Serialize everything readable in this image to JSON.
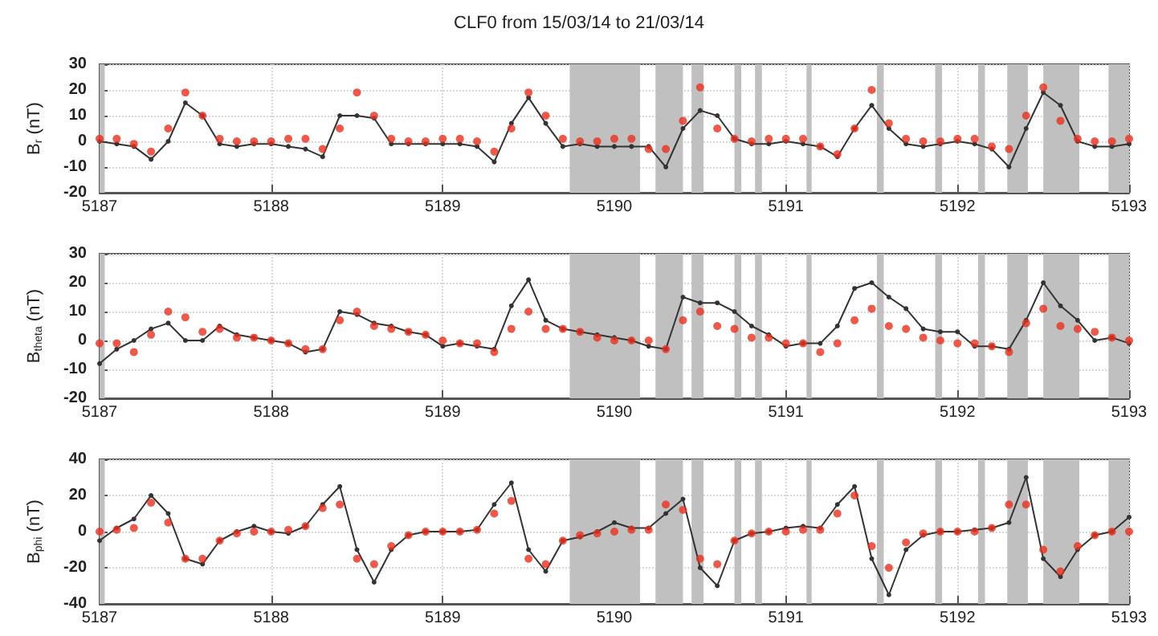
{
  "chart_data": [
    {
      "type": "line",
      "title": "CLF0 from 15/03/14 to 21/03/14",
      "ylabel": "B$_{r}$ (nT)",
      "grid": true,
      "x": [
        5187,
        5187.1,
        5187.2,
        5187.3,
        5187.4,
        5187.5,
        5187.6,
        5187.7,
        5187.8,
        5187.9,
        5188,
        5188.1,
        5188.2,
        5188.3,
        5188.4,
        5188.5,
        5188.6,
        5188.7,
        5188.8,
        5188.9,
        5189,
        5189.1,
        5189.2,
        5189.3,
        5189.4,
        5189.5,
        5189.6,
        5189.7,
        5189.8,
        5189.9,
        5190,
        5190.1,
        5190.2,
        5190.3,
        5190.4,
        5190.5,
        5190.6,
        5190.7,
        5190.8,
        5190.9,
        5191,
        5191.1,
        5191.2,
        5191.3,
        5191.4,
        5191.5,
        5191.6,
        5191.7,
        5191.8,
        5191.9,
        5192,
        5192.1,
        5192.2,
        5192.3,
        5192.4,
        5192.5,
        5192.6,
        5192.7,
        5192.8,
        5192.9,
        5193
      ],
      "xlim": [
        5187,
        5193
      ],
      "xticks": [
        5187,
        5188,
        5189,
        5190,
        5191,
        5192,
        5193
      ],
      "ylim": [
        -20,
        30
      ],
      "yticks": [
        -20,
        -10,
        0,
        10,
        20,
        30
      ],
      "series": [
        {
          "color": "#333333",
          "marker": "circle",
          "values": [
            0,
            -1,
            -2,
            -7,
            0,
            15,
            10,
            -1,
            -2,
            -1,
            -1,
            -2,
            -3,
            -6,
            10,
            10,
            9,
            -1,
            -1,
            -1,
            -1,
            -1,
            -2,
            -8,
            7,
            17,
            7,
            -2,
            -1,
            -2,
            -2,
            -2,
            -2,
            -10,
            5,
            12,
            10,
            1,
            -1,
            -1,
            0,
            -1,
            -2,
            -6,
            5,
            14,
            5,
            -1,
            -2,
            -1,
            0,
            -1,
            -3,
            -10,
            5,
            19,
            14,
            0,
            -2,
            -2,
            -1
          ]
        },
        {
          "type": "scatter",
          "color": "#e8311e",
          "marker": "circle",
          "values": [
            1,
            1,
            -1,
            -4,
            5,
            19,
            10,
            1,
            0,
            0,
            0,
            1,
            1,
            -3,
            5,
            19,
            10,
            1,
            0,
            0,
            1,
            1,
            0,
            -4,
            5,
            19,
            10,
            1,
            0,
            0,
            1,
            1,
            -3,
            -3,
            8,
            21,
            5,
            1,
            0,
            1,
            1,
            1,
            -2,
            -5,
            5,
            20,
            7,
            1,
            0,
            0,
            1,
            1,
            -2,
            -3,
            10,
            21,
            8,
            1,
            0,
            0,
            1
          ]
        }
      ],
      "bands": [
        {
          "axis": "x",
          "from": 5187,
          "to": 5187.03,
          "color": "#c0c0c0"
        },
        {
          "axis": "x",
          "from": 5189.74,
          "to": 5190.15,
          "color": "#c0c0c0"
        },
        {
          "axis": "x",
          "from": 5190.24,
          "to": 5190.4,
          "color": "#c0c0c0"
        },
        {
          "axis": "x",
          "from": 5190.45,
          "to": 5190.52,
          "color": "#c0c0c0"
        },
        {
          "axis": "x",
          "from": 5190.7,
          "to": 5190.74,
          "color": "#c0c0c0"
        },
        {
          "axis": "x",
          "from": 5190.82,
          "to": 5190.86,
          "color": "#c0c0c0"
        },
        {
          "axis": "x",
          "from": 5191.12,
          "to": 5191.15,
          "color": "#c0c0c0"
        },
        {
          "axis": "x",
          "from": 5191.53,
          "to": 5191.57,
          "color": "#c0c0c0"
        },
        {
          "axis": "x",
          "from": 5191.87,
          "to": 5191.91,
          "color": "#c0c0c0"
        },
        {
          "axis": "x",
          "from": 5192.12,
          "to": 5192.16,
          "color": "#c0c0c0"
        },
        {
          "axis": "x",
          "from": 5192.29,
          "to": 5192.41,
          "color": "#c0c0c0"
        },
        {
          "axis": "x",
          "from": 5192.5,
          "to": 5192.71,
          "color": "#c0c0c0"
        },
        {
          "axis": "x",
          "from": 5192.88,
          "to": 5193,
          "color": "#c0c0c0"
        }
      ]
    },
    {
      "type": "line",
      "ylabel": "B$_{theta}$ (nT)",
      "grid": true,
      "x": [
        5187,
        5187.1,
        5187.2,
        5187.3,
        5187.4,
        5187.5,
        5187.6,
        5187.7,
        5187.8,
        5187.9,
        5188,
        5188.1,
        5188.2,
        5188.3,
        5188.4,
        5188.5,
        5188.6,
        5188.7,
        5188.8,
        5188.9,
        5189,
        5189.1,
        5189.2,
        5189.3,
        5189.4,
        5189.5,
        5189.6,
        5189.7,
        5189.8,
        5189.9,
        5190,
        5190.1,
        5190.2,
        5190.3,
        5190.4,
        5190.5,
        5190.6,
        5190.7,
        5190.8,
        5190.9,
        5191,
        5191.1,
        5191.2,
        5191.3,
        5191.4,
        5191.5,
        5191.6,
        5191.7,
        5191.8,
        5191.9,
        5192,
        5192.1,
        5192.2,
        5192.3,
        5192.4,
        5192.5,
        5192.6,
        5192.7,
        5192.8,
        5192.9,
        5193
      ],
      "xlim": [
        5187,
        5193
      ],
      "xticks": [
        5187,
        5188,
        5189,
        5190,
        5191,
        5192,
        5193
      ],
      "ylim": [
        -20,
        30
      ],
      "yticks": [
        -20,
        -10,
        0,
        10,
        20,
        30
      ],
      "series": [
        {
          "color": "#333333",
          "marker": "circle",
          "values": [
            -8,
            -3,
            0,
            4,
            6,
            0,
            0,
            5,
            2,
            1,
            0,
            -1,
            -4,
            -3,
            10,
            9,
            6,
            5,
            3,
            2,
            -2,
            -1,
            -2,
            -3,
            12,
            21,
            7,
            4,
            3,
            2,
            1,
            0,
            -2,
            -3,
            15,
            13,
            13,
            10,
            5,
            2,
            -2,
            -1,
            -1,
            5,
            18,
            20,
            15,
            11,
            4,
            3,
            3,
            -2,
            -2,
            -3,
            7,
            20,
            12,
            7,
            0,
            1,
            -1
          ]
        },
        {
          "type": "scatter",
          "color": "#e8311e",
          "marker": "circle",
          "values": [
            -1,
            -1,
            -4,
            2,
            10,
            8,
            3,
            4,
            1,
            1,
            0,
            -1,
            -3,
            -3,
            7,
            10,
            5,
            4,
            3,
            2,
            0,
            -1,
            -1,
            -4,
            4,
            10,
            4,
            4,
            3,
            1,
            0,
            0,
            0,
            -3,
            7,
            10,
            5,
            4,
            1,
            1,
            -1,
            -1,
            -4,
            -1,
            7,
            11,
            5,
            4,
            1,
            0,
            -1,
            -1,
            -2,
            -4,
            6,
            11,
            5,
            4,
            3,
            1,
            0
          ]
        }
      ],
      "bands": [
        {
          "axis": "x",
          "from": 5187,
          "to": 5187.03,
          "color": "#c0c0c0"
        },
        {
          "axis": "x",
          "from": 5189.74,
          "to": 5190.15,
          "color": "#c0c0c0"
        },
        {
          "axis": "x",
          "from": 5190.24,
          "to": 5190.4,
          "color": "#c0c0c0"
        },
        {
          "axis": "x",
          "from": 5190.45,
          "to": 5190.52,
          "color": "#c0c0c0"
        },
        {
          "axis": "x",
          "from": 5190.7,
          "to": 5190.74,
          "color": "#c0c0c0"
        },
        {
          "axis": "x",
          "from": 5190.82,
          "to": 5190.86,
          "color": "#c0c0c0"
        },
        {
          "axis": "x",
          "from": 5191.12,
          "to": 5191.15,
          "color": "#c0c0c0"
        },
        {
          "axis": "x",
          "from": 5191.53,
          "to": 5191.57,
          "color": "#c0c0c0"
        },
        {
          "axis": "x",
          "from": 5191.87,
          "to": 5191.91,
          "color": "#c0c0c0"
        },
        {
          "axis": "x",
          "from": 5192.12,
          "to": 5192.16,
          "color": "#c0c0c0"
        },
        {
          "axis": "x",
          "from": 5192.29,
          "to": 5192.41,
          "color": "#c0c0c0"
        },
        {
          "axis": "x",
          "from": 5192.5,
          "to": 5192.71,
          "color": "#c0c0c0"
        },
        {
          "axis": "x",
          "from": 5192.88,
          "to": 5193,
          "color": "#c0c0c0"
        }
      ]
    },
    {
      "type": "line",
      "ylabel": "B$_{phi}$ (nT)",
      "grid": true,
      "x": [
        5187,
        5187.1,
        5187.2,
        5187.3,
        5187.4,
        5187.5,
        5187.6,
        5187.7,
        5187.8,
        5187.9,
        5188,
        5188.1,
        5188.2,
        5188.3,
        5188.4,
        5188.5,
        5188.6,
        5188.7,
        5188.8,
        5188.9,
        5189,
        5189.1,
        5189.2,
        5189.3,
        5189.4,
        5189.5,
        5189.6,
        5189.7,
        5189.8,
        5189.9,
        5190,
        5190.1,
        5190.2,
        5190.3,
        5190.4,
        5190.5,
        5190.6,
        5190.7,
        5190.8,
        5190.9,
        5191,
        5191.1,
        5191.2,
        5191.3,
        5191.4,
        5191.5,
        5191.6,
        5191.7,
        5191.8,
        5191.9,
        5192,
        5192.1,
        5192.2,
        5192.3,
        5192.4,
        5192.5,
        5192.6,
        5192.7,
        5192.8,
        5192.9,
        5193
      ],
      "xlim": [
        5187,
        5193
      ],
      "xticks": [
        5187,
        5188,
        5189,
        5190,
        5191,
        5192,
        5193
      ],
      "ylim": [
        -40,
        40
      ],
      "yticks": [
        -40,
        -20,
        0,
        20,
        40
      ],
      "series": [
        {
          "color": "#333333",
          "marker": "circle",
          "values": [
            -5,
            2,
            7,
            20,
            10,
            -15,
            -18,
            -5,
            0,
            3,
            0,
            -1,
            3,
            15,
            25,
            -10,
            -28,
            -10,
            -2,
            0,
            0,
            0,
            1,
            15,
            27,
            -10,
            -22,
            -5,
            -3,
            0,
            5,
            2,
            2,
            10,
            18,
            -20,
            -30,
            -5,
            -1,
            0,
            2,
            3,
            2,
            15,
            25,
            -15,
            -35,
            -10,
            -2,
            0,
            0,
            1,
            2,
            5,
            30,
            -15,
            -25,
            -10,
            -2,
            0,
            8
          ]
        },
        {
          "type": "scatter",
          "color": "#e8311e",
          "marker": "circle",
          "values": [
            0,
            1,
            2,
            16,
            5,
            -15,
            -15,
            -5,
            -1,
            0,
            0,
            1,
            3,
            13,
            15,
            -15,
            -18,
            -8,
            -2,
            0,
            0,
            0,
            1,
            10,
            17,
            -15,
            -18,
            -5,
            -2,
            -1,
            0,
            1,
            1,
            15,
            12,
            -15,
            -18,
            -5,
            -1,
            0,
            0,
            1,
            1,
            10,
            20,
            -8,
            -20,
            -6,
            -1,
            0,
            0,
            0,
            2,
            15,
            15,
            -10,
            -22,
            -8,
            -2,
            0,
            0
          ]
        }
      ],
      "bands": [
        {
          "axis": "x",
          "from": 5187,
          "to": 5187.03,
          "color": "#c0c0c0"
        },
        {
          "axis": "x",
          "from": 5189.74,
          "to": 5190.15,
          "color": "#c0c0c0"
        },
        {
          "axis": "x",
          "from": 5190.24,
          "to": 5190.4,
          "color": "#c0c0c0"
        },
        {
          "axis": "x",
          "from": 5190.45,
          "to": 5190.52,
          "color": "#c0c0c0"
        },
        {
          "axis": "x",
          "from": 5190.7,
          "to": 5190.74,
          "color": "#c0c0c0"
        },
        {
          "axis": "x",
          "from": 5190.82,
          "to": 5190.86,
          "color": "#c0c0c0"
        },
        {
          "axis": "x",
          "from": 5191.12,
          "to": 5191.15,
          "color": "#c0c0c0"
        },
        {
          "axis": "x",
          "from": 5191.53,
          "to": 5191.57,
          "color": "#c0c0c0"
        },
        {
          "axis": "x",
          "from": 5191.87,
          "to": 5191.91,
          "color": "#c0c0c0"
        },
        {
          "axis": "x",
          "from": 5192.12,
          "to": 5192.16,
          "color": "#c0c0c0"
        },
        {
          "axis": "x",
          "from": 5192.29,
          "to": 5192.41,
          "color": "#c0c0c0"
        },
        {
          "axis": "x",
          "from": 5192.5,
          "to": 5192.71,
          "color": "#c0c0c0"
        },
        {
          "axis": "x",
          "from": 5192.88,
          "to": 5193,
          "color": "#c0c0c0"
        }
      ]
    }
  ]
}
